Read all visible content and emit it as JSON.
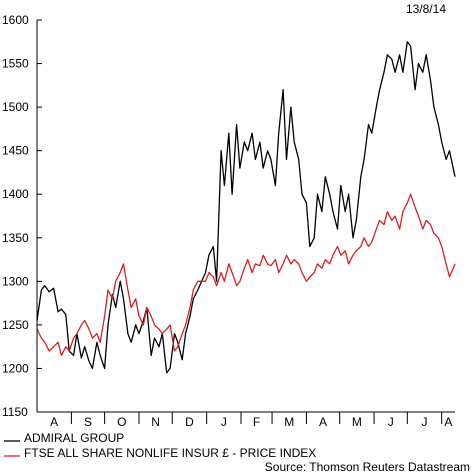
{
  "date_label": "13/8/14",
  "source": "Source: Thomson Reuters Datastream",
  "chart_data": {
    "type": "line",
    "title": "",
    "xlabel": "",
    "ylabel": "",
    "ylim": [
      1150,
      1600
    ],
    "yticks": [
      1150,
      1200,
      1250,
      1300,
      1350,
      1400,
      1450,
      1500,
      1550,
      1600
    ],
    "x_period": [
      "2013-08-01",
      "2014-08-13"
    ],
    "x_tick_labels": [
      "A",
      "S",
      "O",
      "N",
      "D",
      "J",
      "F",
      "M",
      "A",
      "M",
      "J",
      "J",
      "A"
    ],
    "grid": false,
    "legend_position": "bottom-left",
    "series": [
      {
        "name": "ADMIRAL GROUP",
        "color": "#000000",
        "x": [
          "2013-08-01",
          "2013-08-05",
          "2013-08-08",
          "2013-08-12",
          "2013-08-16",
          "2013-08-20",
          "2013-08-23",
          "2013-08-27",
          "2013-08-30",
          "2013-09-03",
          "2013-09-06",
          "2013-09-10",
          "2013-09-13",
          "2013-09-17",
          "2013-09-20",
          "2013-09-24",
          "2013-09-27",
          "2013-10-01",
          "2013-10-04",
          "2013-10-08",
          "2013-10-11",
          "2013-10-15",
          "2013-10-18",
          "2013-10-22",
          "2013-10-25",
          "2013-10-29",
          "2013-11-01",
          "2013-11-05",
          "2013-11-08",
          "2013-11-12",
          "2013-11-15",
          "2013-11-19",
          "2013-11-22",
          "2013-11-26",
          "2013-11-29",
          "2013-12-03",
          "2013-12-06",
          "2013-12-10",
          "2013-12-13",
          "2013-12-17",
          "2013-12-20",
          "2013-12-24",
          "2013-12-31",
          "2014-01-03",
          "2014-01-07",
          "2014-01-10",
          "2014-01-14",
          "2014-01-17",
          "2014-01-21",
          "2014-01-24",
          "2014-01-28",
          "2014-01-31",
          "2014-02-04",
          "2014-02-07",
          "2014-02-11",
          "2014-02-14",
          "2014-02-18",
          "2014-02-21",
          "2014-02-25",
          "2014-02-28",
          "2014-03-04",
          "2014-03-07",
          "2014-03-11",
          "2014-03-14",
          "2014-03-18",
          "2014-03-21",
          "2014-03-25",
          "2014-03-28",
          "2014-04-01",
          "2014-04-04",
          "2014-04-08",
          "2014-04-11",
          "2014-04-15",
          "2014-04-18",
          "2014-04-22",
          "2014-04-25",
          "2014-04-29",
          "2014-05-02",
          "2014-05-06",
          "2014-05-09",
          "2014-05-13",
          "2014-05-16",
          "2014-05-20",
          "2014-05-23",
          "2014-05-27",
          "2014-05-30",
          "2014-06-03",
          "2014-06-06",
          "2014-06-10",
          "2014-06-13",
          "2014-06-17",
          "2014-06-20",
          "2014-06-24",
          "2014-06-27",
          "2014-07-01",
          "2014-07-04",
          "2014-07-08",
          "2014-07-11",
          "2014-07-15",
          "2014-07-18",
          "2014-07-22",
          "2014-07-25",
          "2014-07-29",
          "2014-08-01",
          "2014-08-05",
          "2014-08-08",
          "2014-08-13"
        ],
        "values": [
          1255,
          1290,
          1295,
          1288,
          1292,
          1265,
          1268,
          1262,
          1220,
          1215,
          1240,
          1212,
          1225,
          1208,
          1200,
          1230,
          1215,
          1200,
          1250,
          1285,
          1270,
          1300,
          1280,
          1240,
          1230,
          1250,
          1240,
          1255,
          1270,
          1215,
          1235,
          1225,
          1240,
          1195,
          1200,
          1240,
          1230,
          1210,
          1240,
          1260,
          1280,
          1290,
          1310,
          1330,
          1340,
          1300,
          1450,
          1410,
          1470,
          1400,
          1480,
          1430,
          1460,
          1450,
          1470,
          1440,
          1460,
          1430,
          1450,
          1440,
          1410,
          1470,
          1520,
          1440,
          1500,
          1460,
          1440,
          1400,
          1390,
          1340,
          1350,
          1400,
          1380,
          1420,
          1400,
          1380,
          1360,
          1410,
          1380,
          1400,
          1350,
          1370,
          1420,
          1440,
          1480,
          1470,
          1500,
          1520,
          1540,
          1560,
          1555,
          1540,
          1560,
          1540,
          1575,
          1570,
          1520,
          1550,
          1540,
          1560,
          1530,
          1500,
          1480,
          1460,
          1440,
          1450,
          1420
        ]
      },
      {
        "name": "FTSE ALL SHARE NONLIFE INSUR £ - PRICE INDEX",
        "color": "#d82020",
        "x": [
          "2013-08-01",
          "2013-08-05",
          "2013-08-08",
          "2013-08-12",
          "2013-08-16",
          "2013-08-20",
          "2013-08-23",
          "2013-08-27",
          "2013-08-30",
          "2013-09-03",
          "2013-09-06",
          "2013-09-10",
          "2013-09-13",
          "2013-09-17",
          "2013-09-20",
          "2013-09-24",
          "2013-09-27",
          "2013-10-01",
          "2013-10-04",
          "2013-10-08",
          "2013-10-11",
          "2013-10-15",
          "2013-10-18",
          "2013-10-22",
          "2013-10-25",
          "2013-10-29",
          "2013-11-01",
          "2013-11-05",
          "2013-11-08",
          "2013-11-12",
          "2013-11-15",
          "2013-11-19",
          "2013-11-22",
          "2013-11-26",
          "2013-11-29",
          "2013-12-03",
          "2013-12-06",
          "2013-12-10",
          "2013-12-13",
          "2013-12-17",
          "2013-12-20",
          "2013-12-24",
          "2013-12-31",
          "2014-01-03",
          "2014-01-07",
          "2014-01-10",
          "2014-01-14",
          "2014-01-17",
          "2014-01-21",
          "2014-01-24",
          "2014-01-28",
          "2014-01-31",
          "2014-02-04",
          "2014-02-07",
          "2014-02-11",
          "2014-02-14",
          "2014-02-18",
          "2014-02-21",
          "2014-02-25",
          "2014-02-28",
          "2014-03-04",
          "2014-03-07",
          "2014-03-11",
          "2014-03-14",
          "2014-03-18",
          "2014-03-21",
          "2014-03-25",
          "2014-03-28",
          "2014-04-01",
          "2014-04-04",
          "2014-04-08",
          "2014-04-11",
          "2014-04-15",
          "2014-04-18",
          "2014-04-22",
          "2014-04-25",
          "2014-04-29",
          "2014-05-02",
          "2014-05-06",
          "2014-05-09",
          "2014-05-13",
          "2014-05-16",
          "2014-05-20",
          "2014-05-23",
          "2014-05-27",
          "2014-05-30",
          "2014-06-03",
          "2014-06-06",
          "2014-06-10",
          "2014-06-13",
          "2014-06-17",
          "2014-06-20",
          "2014-06-24",
          "2014-06-27",
          "2014-07-01",
          "2014-07-04",
          "2014-07-08",
          "2014-07-11",
          "2014-07-15",
          "2014-07-18",
          "2014-07-22",
          "2014-07-25",
          "2014-07-29",
          "2014-08-01",
          "2014-08-05",
          "2014-08-08",
          "2014-08-13"
        ],
        "values": [
          1245,
          1235,
          1230,
          1220,
          1225,
          1230,
          1215,
          1225,
          1220,
          1235,
          1240,
          1250,
          1255,
          1245,
          1235,
          1240,
          1230,
          1260,
          1290,
          1280,
          1300,
          1310,
          1320,
          1290,
          1270,
          1280,
          1260,
          1250,
          1270,
          1260,
          1250,
          1245,
          1240,
          1245,
          1250,
          1220,
          1225,
          1240,
          1250,
          1270,
          1290,
          1300,
          1300,
          1310,
          1305,
          1295,
          1310,
          1300,
          1320,
          1310,
          1295,
          1300,
          1315,
          1325,
          1310,
          1320,
          1318,
          1330,
          1320,
          1318,
          1325,
          1310,
          1320,
          1330,
          1320,
          1325,
          1320,
          1310,
          1300,
          1305,
          1310,
          1320,
          1315,
          1325,
          1320,
          1330,
          1340,
          1330,
          1335,
          1320,
          1330,
          1335,
          1340,
          1350,
          1340,
          1345,
          1360,
          1370,
          1365,
          1380,
          1370,
          1375,
          1360,
          1380,
          1390,
          1400,
          1385,
          1375,
          1360,
          1370,
          1365,
          1355,
          1350,
          1340,
          1320,
          1305,
          1320
        ]
      }
    ]
  }
}
